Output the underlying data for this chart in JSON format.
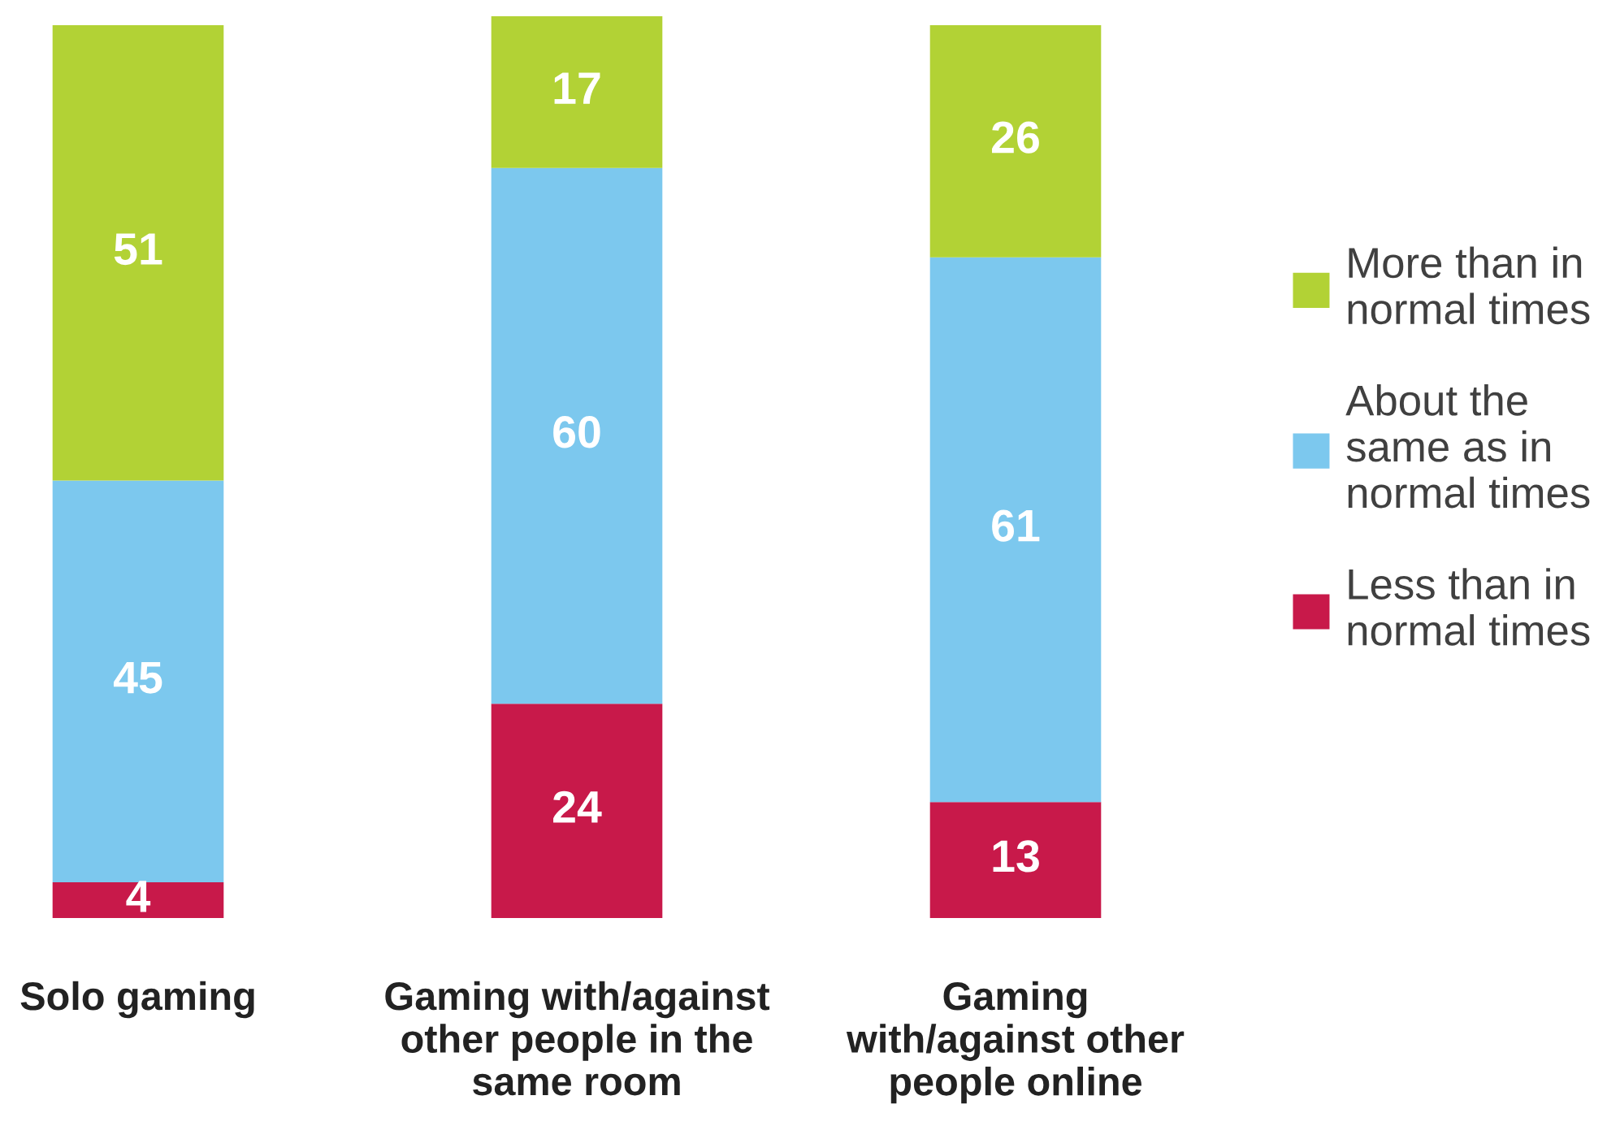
{
  "chart_data": {
    "type": "bar",
    "stacked": true,
    "data_labels": true,
    "legend": "right",
    "grid": false,
    "categories": [
      "Solo gaming",
      "Gaming with/against\nother people in the\nsame room",
      "Gaming\nwith/against other\npeople online"
    ],
    "series": [
      {
        "name": "Less than in\nnormal times",
        "color": "#c8194a",
        "values": [
          4,
          24,
          13
        ]
      },
      {
        "name": "About the\nsame as in\nnormal times",
        "color": "#7cc8ee",
        "values": [
          45,
          60,
          61
        ]
      },
      {
        "name": "More than in\nnormal times",
        "color": "#b2d235",
        "values": [
          51,
          17,
          26
        ]
      }
    ]
  }
}
